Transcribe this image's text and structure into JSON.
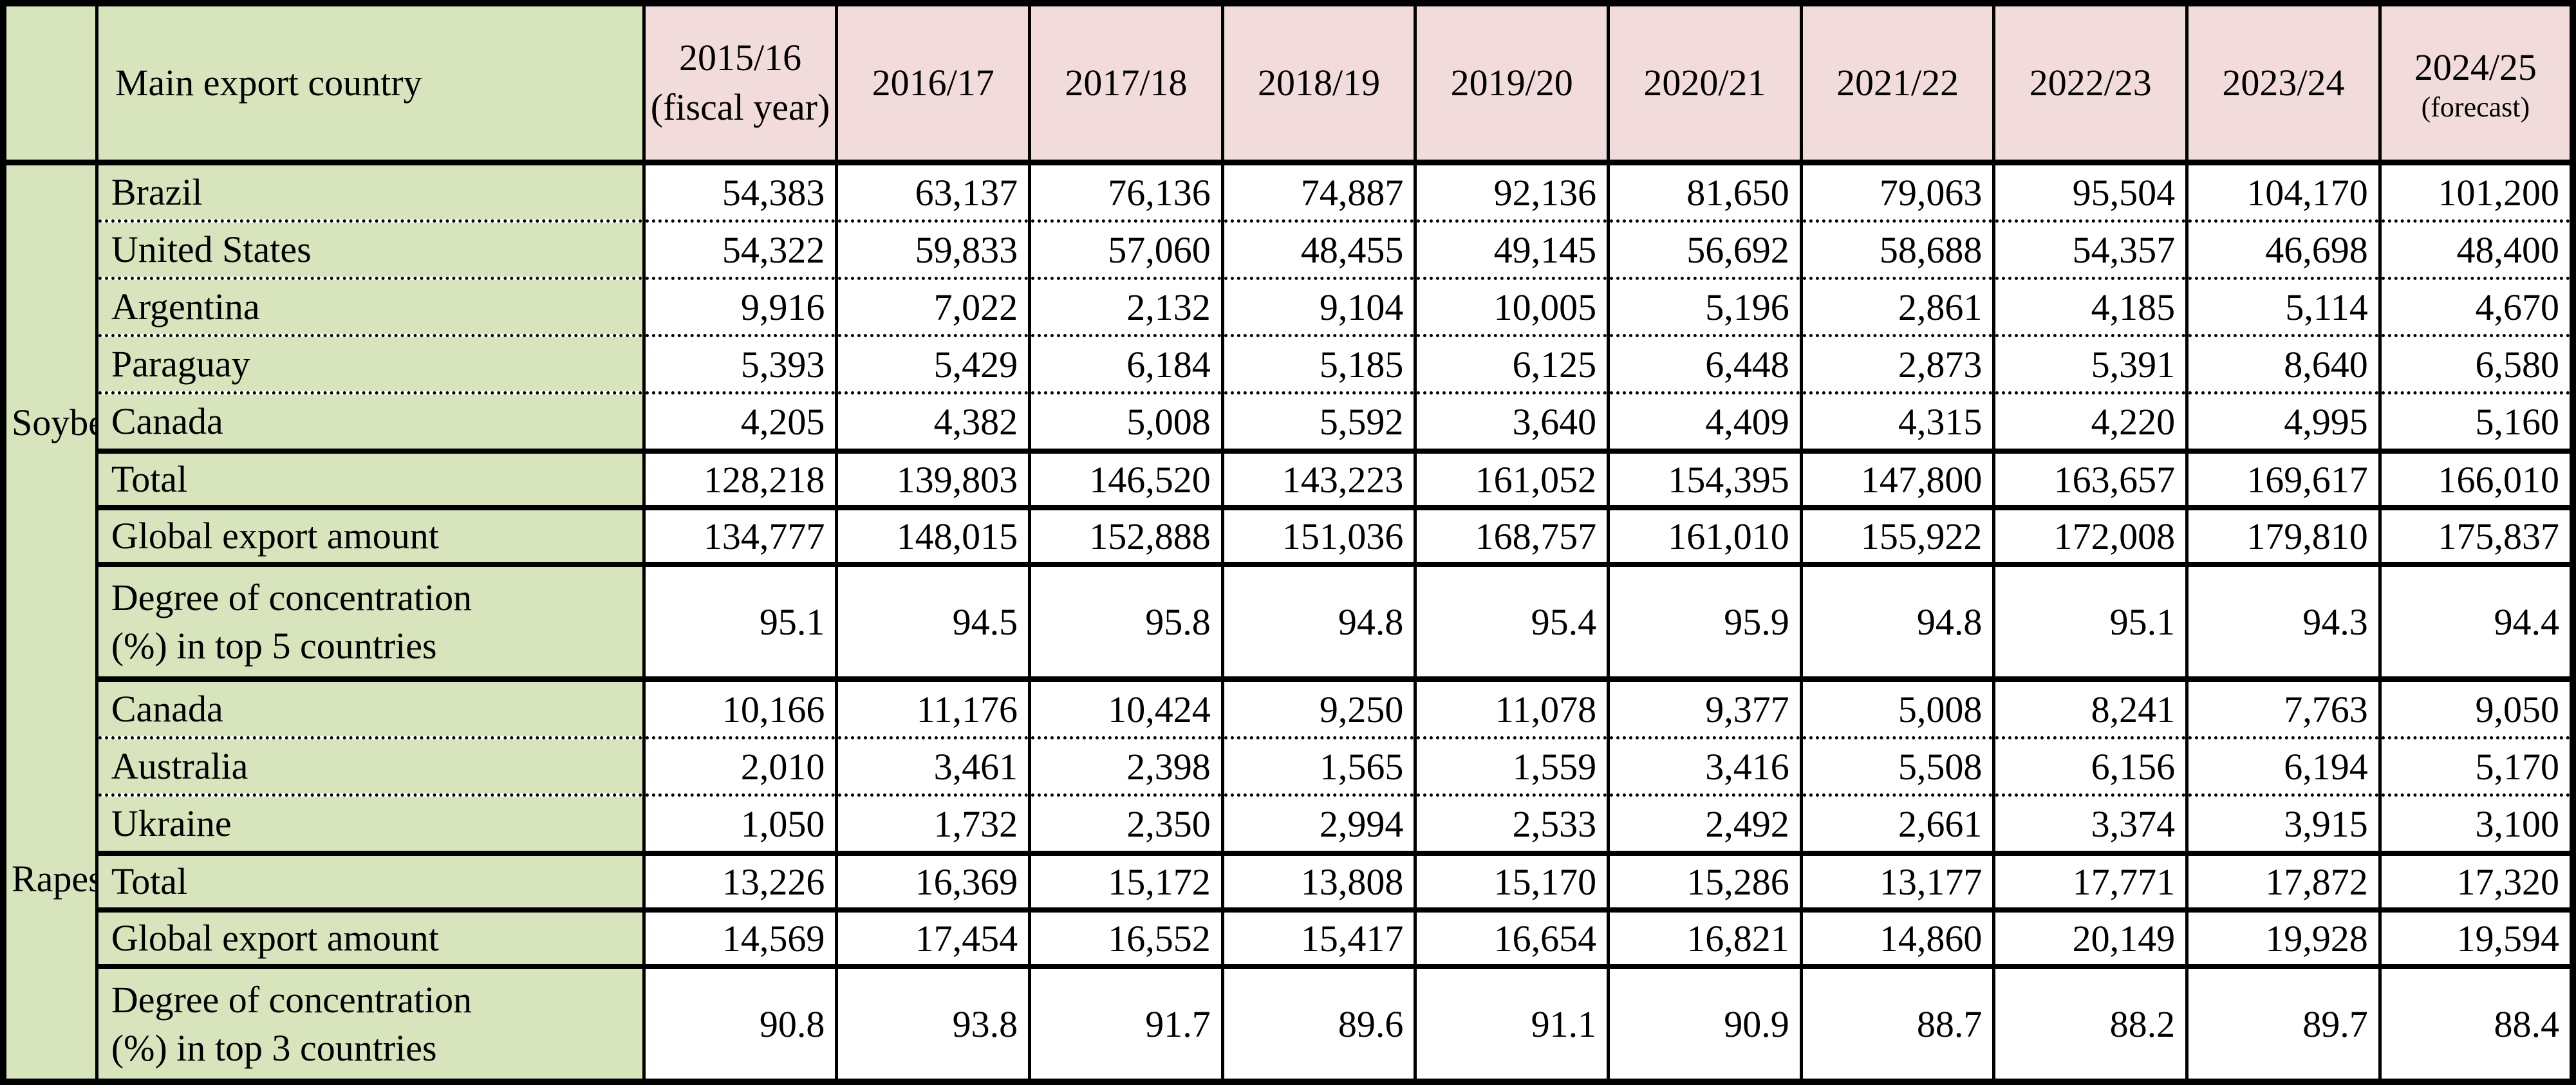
{
  "table": {
    "header": {
      "country_col": "Main export country",
      "years": [
        {
          "label": "2015/16",
          "note": "(fiscal year)"
        },
        {
          "label": "2016/17",
          "note": ""
        },
        {
          "label": "2017/18",
          "note": ""
        },
        {
          "label": "2018/19",
          "note": ""
        },
        {
          "label": "2019/20",
          "note": ""
        },
        {
          "label": "2020/21",
          "note": ""
        },
        {
          "label": "2021/22",
          "note": ""
        },
        {
          "label": "2022/23",
          "note": ""
        },
        {
          "label": "2023/24",
          "note": ""
        },
        {
          "label": "2024/25",
          "note": "(forecast)"
        }
      ]
    },
    "colors": {
      "label_bg": "#d8e4bc",
      "year_header_bg": "#f2dcdb",
      "cell_bg": "#ffffff",
      "border": "#000000"
    },
    "sections": [
      {
        "group": "Soybean",
        "rows": [
          {
            "type": "country",
            "label": "Brazil",
            "values": [
              "54,383",
              "63,137",
              "76,136",
              "74,887",
              "92,136",
              "81,650",
              "79,063",
              "95,504",
              "104,170",
              "101,200"
            ]
          },
          {
            "type": "country",
            "label": "United States",
            "values": [
              "54,322",
              "59,833",
              "57,060",
              "48,455",
              "49,145",
              "56,692",
              "58,688",
              "54,357",
              "46,698",
              "48,400"
            ]
          },
          {
            "type": "country",
            "label": "Argentina",
            "values": [
              "9,916",
              "7,022",
              "2,132",
              "9,104",
              "10,005",
              "5,196",
              "2,861",
              "4,185",
              "5,114",
              "4,670"
            ]
          },
          {
            "type": "country",
            "label": "Paraguay",
            "values": [
              "5,393",
              "5,429",
              "6,184",
              "5,185",
              "6,125",
              "6,448",
              "2,873",
              "5,391",
              "8,640",
              "6,580"
            ]
          },
          {
            "type": "country",
            "label": "Canada",
            "values": [
              "4,205",
              "4,382",
              "5,008",
              "5,592",
              "3,640",
              "4,409",
              "4,315",
              "4,220",
              "4,995",
              "5,160"
            ]
          },
          {
            "type": "total",
            "label": "Total",
            "values": [
              "128,218",
              "139,803",
              "146,520",
              "143,223",
              "161,052",
              "154,395",
              "147,800",
              "163,657",
              "169,617",
              "166,010"
            ]
          },
          {
            "type": "total",
            "label": "Global export amount",
            "values": [
              "134,777",
              "148,015",
              "152,888",
              "151,036",
              "168,757",
              "161,010",
              "155,922",
              "172,008",
              "179,810",
              "175,837"
            ]
          },
          {
            "type": "degree",
            "label": "Degree of concentration\n(%) in top 5 countries",
            "values": [
              "95.1",
              "94.5",
              "95.8",
              "94.8",
              "95.4",
              "95.9",
              "94.8",
              "95.1",
              "94.3",
              "94.4"
            ]
          }
        ]
      },
      {
        "group": "Rapeseed",
        "rows": [
          {
            "type": "country",
            "label": "Canada",
            "values": [
              "10,166",
              "11,176",
              "10,424",
              "9,250",
              "11,078",
              "9,377",
              "5,008",
              "8,241",
              "7,763",
              "9,050"
            ]
          },
          {
            "type": "country",
            "label": "Australia",
            "values": [
              "2,010",
              "3,461",
              "2,398",
              "1,565",
              "1,559",
              "3,416",
              "5,508",
              "6,156",
              "6,194",
              "5,170"
            ]
          },
          {
            "type": "country",
            "label": "Ukraine",
            "values": [
              "1,050",
              "1,732",
              "2,350",
              "2,994",
              "2,533",
              "2,492",
              "2,661",
              "3,374",
              "3,915",
              "3,100"
            ]
          },
          {
            "type": "total",
            "label": "Total",
            "values": [
              "13,226",
              "16,369",
              "15,172",
              "13,808",
              "15,170",
              "15,286",
              "13,177",
              "17,771",
              "17,872",
              "17,320"
            ]
          },
          {
            "type": "total",
            "label": "Global export amount",
            "values": [
              "14,569",
              "17,454",
              "16,552",
              "15,417",
              "16,654",
              "16,821",
              "14,860",
              "20,149",
              "19,928",
              "19,594"
            ]
          },
          {
            "type": "degree",
            "label": "Degree of concentration\n(%) in top 3 countries",
            "values": [
              "90.8",
              "93.8",
              "91.7",
              "89.6",
              "91.1",
              "90.9",
              "88.7",
              "88.2",
              "89.7",
              "88.4"
            ]
          }
        ]
      }
    ]
  }
}
